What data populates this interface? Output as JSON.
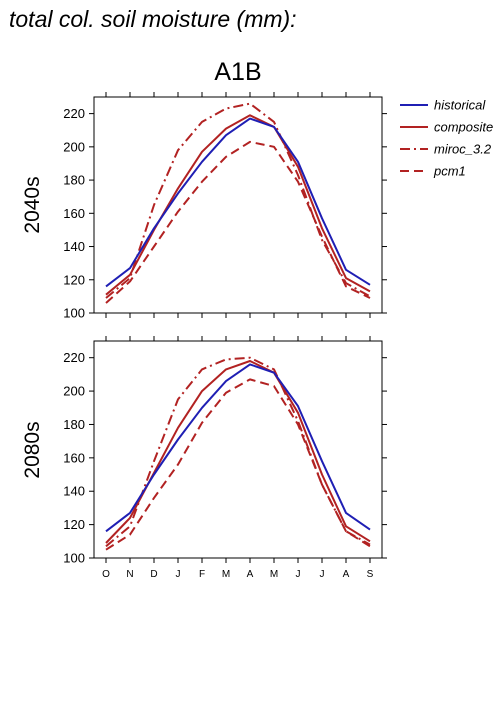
{
  "title": "total col. soil moisture (mm):",
  "scenario": "A1B",
  "legend": [
    {
      "label": "historical",
      "color": "#1f1fb4",
      "dash": "solid"
    },
    {
      "label": "composite",
      "color": "#b22222",
      "dash": "solid"
    },
    {
      "label": "miroc_3.2",
      "color": "#b22222",
      "dash": "dashdot"
    },
    {
      "label": "pcm1",
      "color": "#b22222",
      "dash": "dashed"
    }
  ],
  "chart_data": [
    {
      "type": "line",
      "title": "2040s",
      "categories": [
        "O",
        "N",
        "D",
        "J",
        "F",
        "M",
        "A",
        "M",
        "J",
        "J",
        "A",
        "S"
      ],
      "ylim": [
        100,
        230
      ],
      "yticks": [
        100,
        120,
        140,
        160,
        180,
        200,
        220
      ],
      "series": [
        {
          "name": "historical",
          "values": [
            116,
            127,
            151,
            172,
            191,
            207,
            217,
            212,
            191,
            157,
            126,
            117
          ]
        },
        {
          "name": "composite",
          "values": [
            111,
            123,
            150,
            175,
            197,
            211,
            219,
            212,
            188,
            151,
            121,
            113
          ]
        },
        {
          "name": "miroc_3.2",
          "values": [
            109,
            121,
            165,
            198,
            215,
            223,
            226,
            215,
            183,
            144,
            118,
            110
          ]
        },
        {
          "name": "pcm1",
          "values": [
            106,
            119,
            140,
            161,
            179,
            194,
            203,
            200,
            179,
            146,
            116,
            109
          ]
        }
      ]
    },
    {
      "type": "line",
      "title": "2080s",
      "categories": [
        "O",
        "N",
        "D",
        "J",
        "F",
        "M",
        "A",
        "M",
        "J",
        "J",
        "A",
        "S"
      ],
      "ylim": [
        100,
        230
      ],
      "yticks": [
        100,
        120,
        140,
        160,
        180,
        200,
        220
      ],
      "series": [
        {
          "name": "historical",
          "values": [
            116,
            127,
            150,
            171,
            190,
            206,
            216,
            211,
            191,
            158,
            127,
            117
          ]
        },
        {
          "name": "composite",
          "values": [
            109,
            124,
            151,
            178,
            200,
            213,
            218,
            211,
            187,
            150,
            119,
            110
          ]
        },
        {
          "name": "miroc_3.2",
          "values": [
            107,
            119,
            158,
            195,
            213,
            219,
            220,
            213,
            182,
            144,
            116,
            108
          ]
        },
        {
          "name": "pcm1",
          "values": [
            105,
            114,
            136,
            156,
            181,
            199,
            207,
            203,
            180,
            144,
            116,
            107
          ]
        }
      ]
    }
  ]
}
